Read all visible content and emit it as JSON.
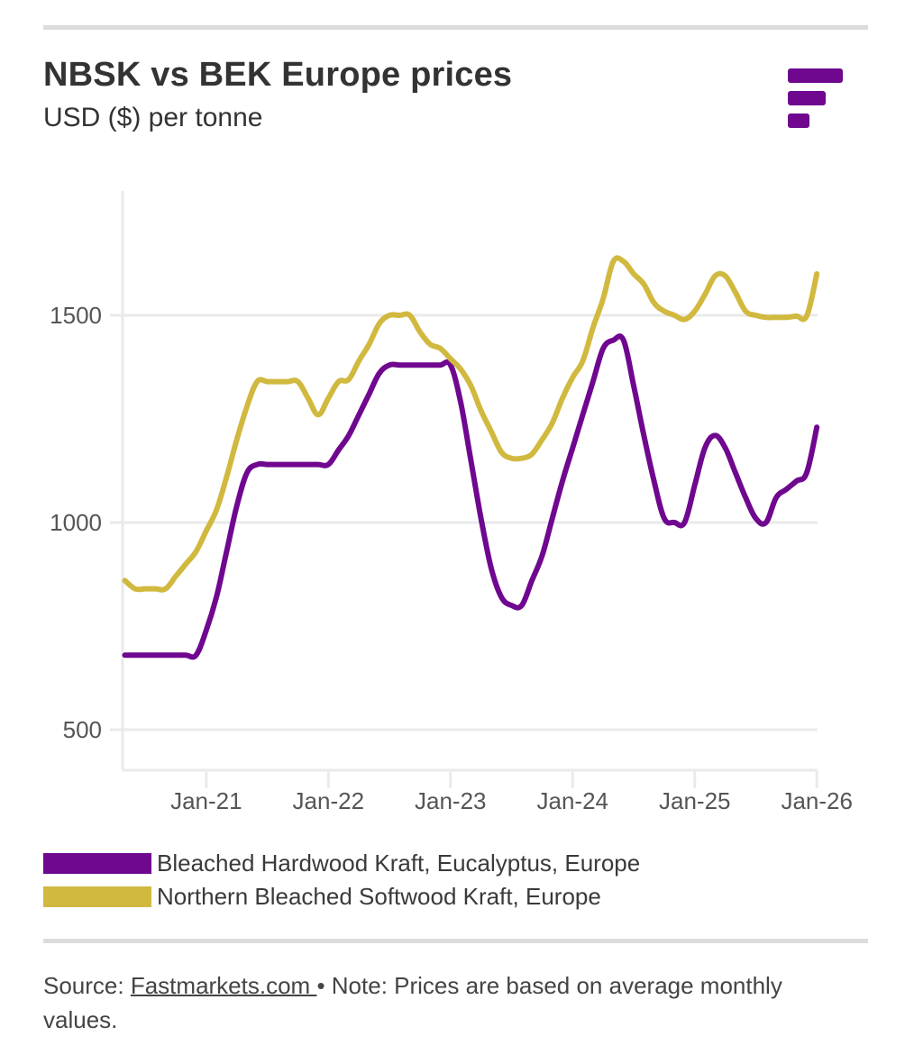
{
  "header": {
    "title": "NBSK vs BEK Europe prices",
    "subtitle": "USD ($) per tonne",
    "logo_icon": "fastmarkets-logo-icon"
  },
  "colors": {
    "bek": "#6f078f",
    "nbsk": "#d1b93f",
    "grid": "#eaeaea",
    "rule": "#dcdcdc"
  },
  "footer": {
    "source_label": "Source:",
    "source_link": "Fastmarkets.com ",
    "bullet": "•",
    "note": "Note: Prices are based on average monthly values."
  },
  "chart_data": {
    "type": "line",
    "title": "NBSK vs BEK Europe prices",
    "subtitle": "USD ($) per tonne",
    "xlabel": "",
    "ylabel": "USD ($) per tonne",
    "x_start": "2020-05",
    "x_end": "2026-01",
    "x_frequency": "monthly",
    "x_ticks": [
      "Jan-21",
      "Jan-22",
      "Jan-23",
      "Jan-24",
      "Jan-25",
      "Jan-26"
    ],
    "x_tick_months": [
      8,
      20,
      32,
      44,
      56,
      68
    ],
    "y_ticks": [
      500,
      1000,
      1500
    ],
    "ylim": [
      400,
      1800
    ],
    "grid": "horizontal",
    "legend_position": "bottom-left",
    "series": [
      {
        "name": "Bleached Hardwood Kraft, Eucalyptus, Europe",
        "color": "#6f078f",
        "values": [
          680,
          680,
          680,
          680,
          680,
          680,
          680,
          680,
          740,
          820,
          930,
          1040,
          1120,
          1140,
          1140,
          1140,
          1140,
          1140,
          1140,
          1140,
          1140,
          1175,
          1210,
          1260,
          1310,
          1360,
          1380,
          1380,
          1380,
          1380,
          1380,
          1380,
          1380,
          1290,
          1150,
          1010,
          890,
          820,
          800,
          800,
          860,
          920,
          1010,
          1100,
          1180,
          1260,
          1340,
          1420,
          1440,
          1440,
          1330,
          1210,
          1100,
          1010,
          1000,
          1000,
          1090,
          1180,
          1210,
          1180,
          1120,
          1060,
          1010,
          1000,
          1060,
          1080,
          1100,
          1120,
          1230
        ]
      },
      {
        "name": "Northern Bleached Softwood Kraft, Europe",
        "color": "#d1b93f",
        "values": [
          860,
          840,
          840,
          840,
          840,
          870,
          900,
          930,
          980,
          1030,
          1110,
          1200,
          1280,
          1340,
          1340,
          1340,
          1340,
          1340,
          1300,
          1260,
          1300,
          1340,
          1345,
          1390,
          1430,
          1480,
          1500,
          1500,
          1500,
          1460,
          1430,
          1420,
          1395,
          1370,
          1330,
          1270,
          1220,
          1170,
          1155,
          1155,
          1165,
          1200,
          1240,
          1300,
          1350,
          1390,
          1470,
          1540,
          1630,
          1630,
          1600,
          1575,
          1530,
          1510,
          1500,
          1490,
          1510,
          1550,
          1595,
          1595,
          1555,
          1510,
          1500,
          1495,
          1495,
          1495,
          1498,
          1498,
          1600
        ]
      }
    ]
  }
}
